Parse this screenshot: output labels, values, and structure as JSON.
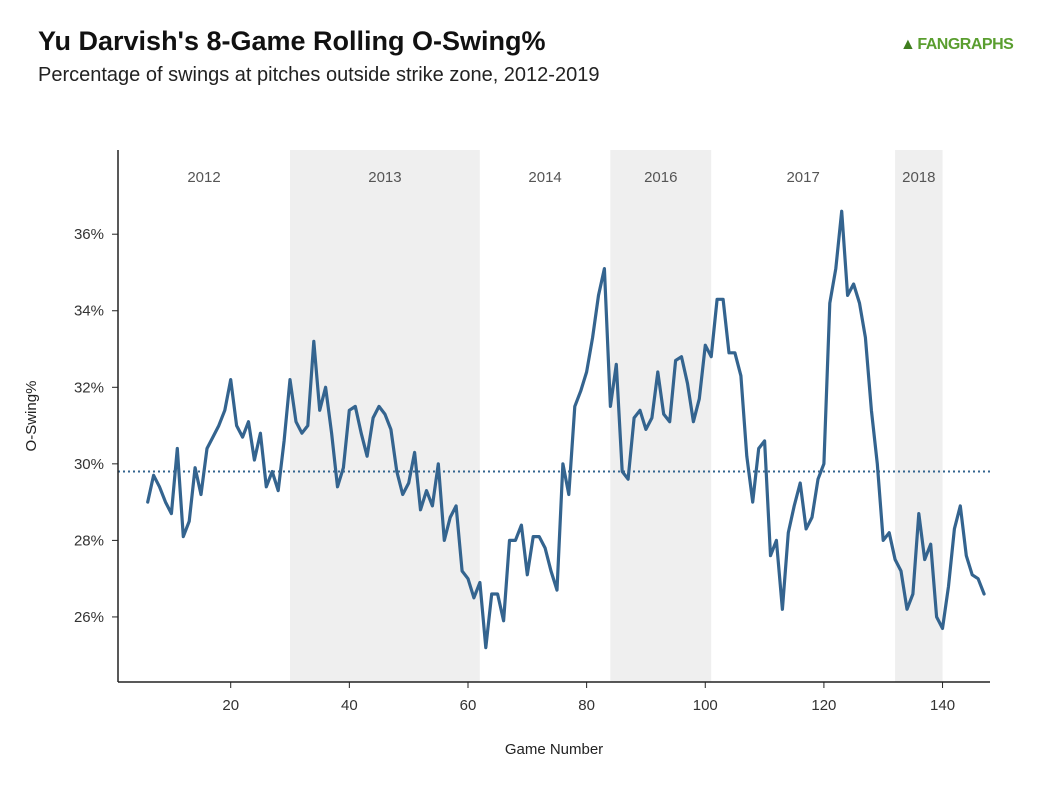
{
  "title": "Yu Darvish's 8-Game Rolling O-Swing%",
  "subtitle": "Percentage of swings at pitches outside strike zone, 2012-2019",
  "brand": {
    "logo_text": "FANGRAPHS",
    "logo_icon": "fangraphs-leaf-icon",
    "color": "#5a9e2f"
  },
  "chart_data": {
    "type": "line",
    "title": "Yu Darvish's 8-Game Rolling O-Swing%",
    "subtitle": "Percentage of swings at pitches outside strike zone, 2012-2019",
    "xlabel": "Game Number",
    "ylabel": "O-Swing%",
    "xlim": [
      1,
      148
    ],
    "ylim": [
      24.3,
      38.2
    ],
    "x_ticks": [
      20,
      40,
      60,
      80,
      100,
      120,
      140
    ],
    "y_ticks": [
      26,
      28,
      30,
      32,
      34,
      36
    ],
    "y_tick_labels": [
      "26%",
      "28%",
      "30%",
      "32%",
      "34%",
      "36%"
    ],
    "grid": false,
    "line_color": "#34648f",
    "reference_line": {
      "y": 29.8,
      "style": "dotted",
      "color": "#34648f"
    },
    "seasons": [
      {
        "label": "2012",
        "x_start": 1,
        "x_end": 30,
        "shaded": false
      },
      {
        "label": "2013",
        "x_start": 30,
        "x_end": 62,
        "shaded": true
      },
      {
        "label": "2014",
        "x_start": 62,
        "x_end": 84,
        "shaded": false
      },
      {
        "label": "2016",
        "x_start": 84,
        "x_end": 101,
        "shaded": true
      },
      {
        "label": "2017",
        "x_start": 101,
        "x_end": 132,
        "shaded": false
      },
      {
        "label": "2018",
        "x_start": 132,
        "x_end": 140,
        "shaded": true
      }
    ],
    "shade_color": "#efefef",
    "series": [
      {
        "x": [
          6,
          7,
          8,
          9,
          10,
          11,
          12,
          13,
          14,
          15,
          16,
          17,
          18,
          19,
          20,
          21,
          22,
          23,
          24,
          25,
          26,
          27,
          28,
          29,
          30,
          31,
          32,
          33,
          34,
          35,
          36,
          37,
          38,
          39,
          40,
          41,
          42,
          43,
          44,
          45,
          46,
          47,
          48,
          49,
          50,
          51,
          52,
          53,
          54,
          55,
          56,
          57,
          58,
          59,
          60,
          61,
          62,
          63,
          64,
          65,
          66,
          67,
          68,
          69,
          70,
          71,
          72,
          73,
          74,
          75,
          76,
          77,
          78,
          79,
          80,
          81,
          82,
          83,
          84,
          85,
          86,
          87,
          88,
          89,
          90,
          91,
          92,
          93,
          94,
          95,
          96,
          97,
          98,
          99,
          100,
          101,
          102,
          103,
          104,
          105,
          106,
          107,
          108,
          109,
          110,
          111,
          112,
          113,
          114,
          115,
          116,
          117,
          118,
          119,
          120,
          121,
          122,
          123,
          124,
          125,
          126,
          127,
          128,
          129,
          130,
          131,
          132,
          133,
          134,
          135,
          136,
          137,
          138,
          139,
          140,
          141,
          142,
          143,
          144,
          145,
          146,
          147
        ],
        "y": [
          29.0,
          29.7,
          29.4,
          29.0,
          28.7,
          30.4,
          28.1,
          28.5,
          29.9,
          29.2,
          30.4,
          30.7,
          31.0,
          31.4,
          32.2,
          31.0,
          30.7,
          31.1,
          30.1,
          30.8,
          29.4,
          29.8,
          29.3,
          30.6,
          32.2,
          31.1,
          30.8,
          31.0,
          33.2,
          31.4,
          32.0,
          30.8,
          29.4,
          29.9,
          31.4,
          31.5,
          30.8,
          30.2,
          31.2,
          31.5,
          31.3,
          30.9,
          29.8,
          29.2,
          29.5,
          30.3,
          28.8,
          29.3,
          28.9,
          30.0,
          28.0,
          28.6,
          28.9,
          27.2,
          27.0,
          26.5,
          26.9,
          25.2,
          26.6,
          26.6,
          25.9,
          28.0,
          28.0,
          28.4,
          27.1,
          28.1,
          28.1,
          27.8,
          27.2,
          26.7,
          30.0,
          29.2,
          31.5,
          31.9,
          32.4,
          33.3,
          34.4,
          35.1,
          31.5,
          32.6,
          29.8,
          29.6,
          31.2,
          31.4,
          30.9,
          31.2,
          32.4,
          31.3,
          31.1,
          32.7,
          32.8,
          32.1,
          31.1,
          31.7,
          33.1,
          32.8,
          34.3,
          34.3,
          32.9,
          32.9,
          32.3,
          30.2,
          29.0,
          30.4,
          30.6,
          27.6,
          28.0,
          26.2,
          28.2,
          28.9,
          29.5,
          28.3,
          28.6,
          29.6,
          30.0,
          34.2,
          35.1,
          36.6,
          34.4,
          34.7,
          34.2,
          33.3,
          31.4,
          30.0,
          28.0,
          28.2,
          27.5,
          27.2,
          26.2,
          26.6,
          28.7,
          27.5,
          27.9,
          26.0,
          25.7,
          26.8,
          28.3,
          28.9,
          27.6,
          27.1,
          27.0,
          26.6
        ]
      }
    ]
  }
}
